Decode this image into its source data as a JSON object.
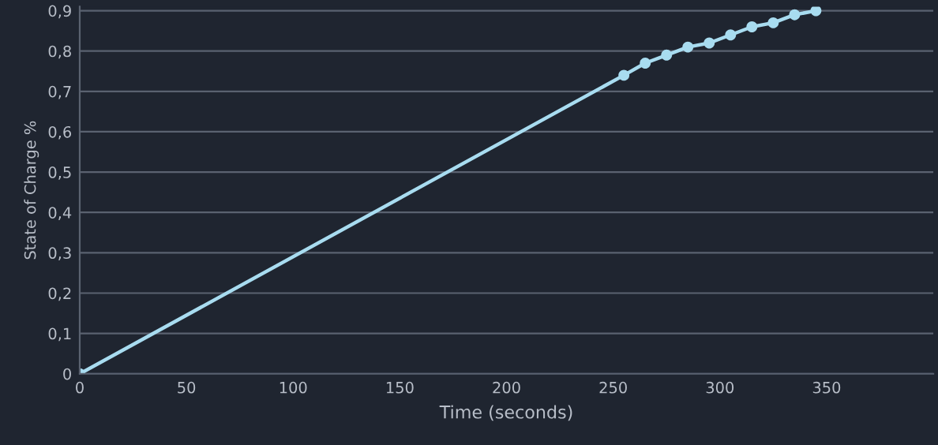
{
  "chart_data": {
    "type": "line",
    "xlabel": "Time (seconds)",
    "ylabel": "State of Charge %",
    "x": [
      0,
      255,
      265,
      275,
      285,
      295,
      305,
      315,
      325,
      335,
      345
    ],
    "series": [
      {
        "color": "#a8dcf0",
        "values": [
          0,
          0.74,
          0.77,
          0.79,
          0.81,
          0.82,
          0.84,
          0.86,
          0.87,
          0.89,
          0.9
        ]
      }
    ],
    "xlim": [
      0,
      400
    ],
    "xticks": [
      0,
      50,
      100,
      150,
      200,
      250,
      300,
      350
    ],
    "ylim": [
      0,
      0.91
    ],
    "yticks": [
      0,
      {
        "value": 0.1,
        "label": "0,1"
      },
      {
        "value": 0.2,
        "label": "0,2"
      },
      {
        "value": 0.3,
        "label": "0,3"
      },
      {
        "value": 0.4,
        "label": "0,4"
      },
      {
        "value": 0.5,
        "label": "0,5"
      },
      {
        "value": 0.6,
        "label": "0,6"
      },
      {
        "value": 0.7,
        "label": "0,7"
      },
      {
        "value": 0.8,
        "label": "0,8"
      },
      {
        "value": 0.9,
        "label": "0,9"
      }
    ],
    "grid": "y",
    "marker": "circle",
    "line_style": "solid",
    "legend": false
  }
}
